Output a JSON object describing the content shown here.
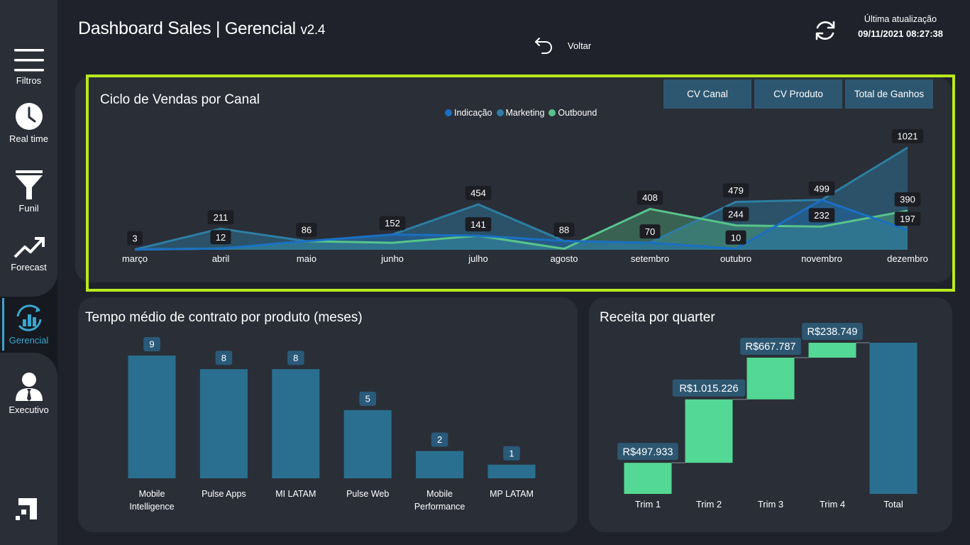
{
  "header": {
    "title_main": "Dashboard Sales",
    "title_sep": "|",
    "title_sub": "Gerencial",
    "version": "v2.4",
    "back_label": "Voltar",
    "update_label": "Última atualização",
    "update_time": "09/11/2021 08:27:38"
  },
  "sidebar": {
    "items": [
      {
        "label": "Filtros",
        "icon": "menu-icon"
      },
      {
        "label": "Real time",
        "icon": "clock-icon"
      },
      {
        "label": "Funil",
        "icon": "funnel-icon"
      },
      {
        "label": "Forecast",
        "icon": "trend-up-icon"
      },
      {
        "label": "Gerencial",
        "icon": "gerencial-chart-icon",
        "active": true
      },
      {
        "label": "Executivo",
        "icon": "executive-user-icon"
      }
    ]
  },
  "colors": {
    "background": "#1f222b",
    "panel": "#2a2e37",
    "highlight": "#b9e81f",
    "indicacao": "#1a6fc4",
    "marketing": "#2c7ea3",
    "outbound": "#58c48a",
    "bar": "#2a6f8f",
    "waterfall_step": "#54d895",
    "active": "#3aa6cf"
  },
  "cycle": {
    "title": "Ciclo de Vendas por Canal",
    "buttons": [
      "CV Canal",
      "CV Produto",
      "Total de Ganhos"
    ]
  },
  "contract": {
    "title": "Tempo médio de contrato por produto (meses)"
  },
  "revenue": {
    "title": "Receita por quarter"
  },
  "chart_data": [
    {
      "type": "area",
      "title": "Ciclo de Vendas por Canal",
      "categories": [
        "março",
        "abril",
        "maio",
        "junho",
        "julho",
        "agosto",
        "setembro",
        "outubro",
        "novembro",
        "dezembro"
      ],
      "series": [
        {
          "name": "Indicação",
          "values": [
            3,
            12,
            86,
            152,
            141,
            88,
            70,
            10,
            499,
            197
          ]
        },
        {
          "name": "Marketing",
          "values": [
            3,
            211,
            86,
            152,
            454,
            88,
            70,
            479,
            499,
            1021
          ]
        },
        {
          "name": "Outbound",
          "values": [
            3,
            12,
            86,
            70,
            141,
            10,
            408,
            244,
            232,
            390
          ]
        }
      ],
      "data_labels": [
        {
          "category": "março",
          "values": [
            "3"
          ]
        },
        {
          "category": "abril",
          "values": [
            "211",
            "12"
          ]
        },
        {
          "category": "maio",
          "values": [
            "86"
          ]
        },
        {
          "category": "junho",
          "values": [
            "152"
          ]
        },
        {
          "category": "julho",
          "values": [
            "454",
            "141"
          ]
        },
        {
          "category": "agosto",
          "values": [
            "88"
          ]
        },
        {
          "category": "setembro",
          "values": [
            "408",
            "70"
          ]
        },
        {
          "category": "outubro",
          "values": [
            "479",
            "244",
            "10"
          ]
        },
        {
          "category": "novembro",
          "values": [
            "499",
            "232"
          ]
        },
        {
          "category": "dezembro",
          "values": [
            "1021",
            "390",
            "197"
          ]
        }
      ],
      "ylim": [
        0,
        1100
      ],
      "legend": "top-center",
      "grid": false
    },
    {
      "type": "bar",
      "title": "Tempo médio de contrato por produto (meses)",
      "categories": [
        "Mobile Intelligence",
        "Pulse Apps",
        "MI LATAM",
        "Pulse Web",
        "Mobile Performance",
        "MP LATAM"
      ],
      "values": [
        9,
        8,
        8,
        5,
        2,
        1
      ],
      "ylim": [
        0,
        9
      ]
    },
    {
      "type": "bar",
      "subtype": "waterfall",
      "title": "Receita por quarter",
      "categories": [
        "Trim 1",
        "Trim 2",
        "Trim 3",
        "Trim 4",
        "Total"
      ],
      "values": [
        497933,
        1015226,
        667787,
        238749,
        2419695
      ],
      "labels": [
        "R$497.933",
        "R$1.015.226",
        "R$667.787",
        "R$238.749",
        ""
      ]
    }
  ]
}
